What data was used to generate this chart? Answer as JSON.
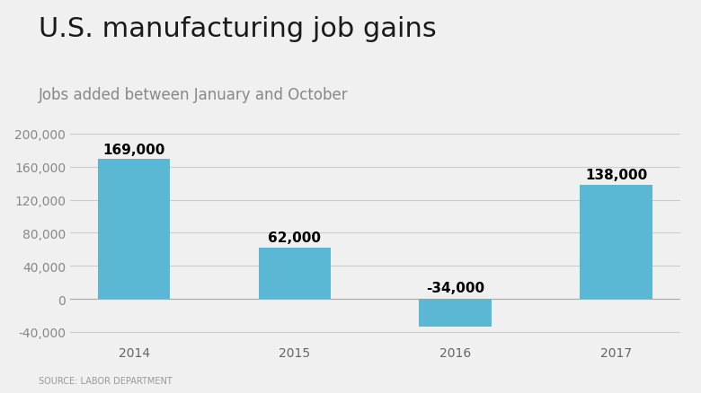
{
  "title": "U.S. manufacturing job gains",
  "subtitle": "Jobs added between January and October",
  "source": "SOURCE: LABOR DEPARTMENT",
  "categories": [
    "2014",
    "2015",
    "2016",
    "2017"
  ],
  "values": [
    169000,
    62000,
    -34000,
    138000
  ],
  "bar_color": "#5BB8D4",
  "background_color": "#f0f0f0",
  "plot_background_color": "#f0f0f0",
  "title_fontsize": 22,
  "subtitle_fontsize": 12,
  "source_fontsize": 7,
  "label_fontsize": 11,
  "tick_fontsize": 10,
  "ylim": [
    -52000,
    215000
  ],
  "yticks": [
    -40000,
    0,
    40000,
    80000,
    120000,
    160000,
    200000
  ]
}
